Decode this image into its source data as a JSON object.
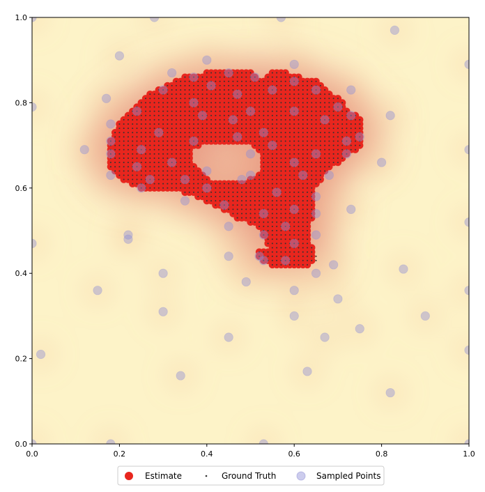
{
  "chart_data": {
    "type": "scatter",
    "title": "",
    "xlabel": "",
    "ylabel": "",
    "xlim": [
      0.0,
      1.0
    ],
    "ylim": [
      0.0,
      1.0
    ],
    "xticks": [
      "0.0",
      "0.2",
      "0.4",
      "0.6",
      "0.8",
      "1.0"
    ],
    "yticks": [
      "0.0",
      "0.2",
      "0.4",
      "0.6",
      "0.8",
      "1.0"
    ],
    "grid": false,
    "legend_position": "bottom-center",
    "background": "heatmap of estimated density (pale yellow low, salmon/pink high)",
    "colors": {
      "estimate": "#e8261e",
      "ground_truth": "#333333",
      "sampled": "#8f8fd6",
      "heat_low": "#fdf3c8",
      "heat_high": "#e07a70"
    },
    "series": [
      {
        "name": "Estimate",
        "marker": "filled-circle",
        "region_rows": [
          {
            "y": 0.87,
            "spans": [
              [
                0.4,
                0.5
              ],
              [
                0.55,
                0.58
              ]
            ]
          },
          {
            "y": 0.86,
            "spans": [
              [
                0.35,
                0.51
              ],
              [
                0.54,
                0.61
              ]
            ]
          },
          {
            "y": 0.85,
            "spans": [
              [
                0.33,
                0.65
              ]
            ]
          },
          {
            "y": 0.84,
            "spans": [
              [
                0.31,
                0.66
              ]
            ]
          },
          {
            "y": 0.83,
            "spans": [
              [
                0.29,
                0.67
              ]
            ]
          },
          {
            "y": 0.82,
            "spans": [
              [
                0.27,
                0.68
              ]
            ]
          },
          {
            "y": 0.81,
            "spans": [
              [
                0.26,
                0.7
              ]
            ]
          },
          {
            "y": 0.8,
            "spans": [
              [
                0.25,
                0.71
              ]
            ]
          },
          {
            "y": 0.79,
            "spans": [
              [
                0.24,
                0.71
              ]
            ]
          },
          {
            "y": 0.78,
            "spans": [
              [
                0.23,
                0.72
              ]
            ]
          },
          {
            "y": 0.77,
            "spans": [
              [
                0.22,
                0.74
              ]
            ]
          },
          {
            "y": 0.76,
            "spans": [
              [
                0.21,
                0.75
              ]
            ]
          },
          {
            "y": 0.75,
            "spans": [
              [
                0.2,
                0.75
              ]
            ]
          },
          {
            "y": 0.74,
            "spans": [
              [
                0.2,
                0.75
              ]
            ]
          },
          {
            "y": 0.73,
            "spans": [
              [
                0.19,
                0.75
              ]
            ]
          },
          {
            "y": 0.72,
            "spans": [
              [
                0.19,
                0.75
              ]
            ]
          },
          {
            "y": 0.71,
            "spans": [
              [
                0.18,
                0.75
              ]
            ]
          },
          {
            "y": 0.7,
            "spans": [
              [
                0.18,
                0.38
              ],
              [
                0.51,
                0.75
              ]
            ]
          },
          {
            "y": 0.69,
            "spans": [
              [
                0.18,
                0.36
              ],
              [
                0.52,
                0.74
              ]
            ]
          },
          {
            "y": 0.68,
            "spans": [
              [
                0.18,
                0.36
              ],
              [
                0.53,
                0.72
              ]
            ]
          },
          {
            "y": 0.67,
            "spans": [
              [
                0.18,
                0.36
              ],
              [
                0.53,
                0.71
              ]
            ]
          },
          {
            "y": 0.66,
            "spans": [
              [
                0.18,
                0.36
              ],
              [
                0.53,
                0.7
              ]
            ]
          },
          {
            "y": 0.65,
            "spans": [
              [
                0.18,
                0.37
              ],
              [
                0.53,
                0.68
              ]
            ]
          },
          {
            "y": 0.64,
            "spans": [
              [
                0.19,
                0.38
              ],
              [
                0.53,
                0.67
              ]
            ]
          },
          {
            "y": 0.63,
            "spans": [
              [
                0.2,
                0.39
              ],
              [
                0.52,
                0.66
              ]
            ]
          },
          {
            "y": 0.62,
            "spans": [
              [
                0.21,
                0.4
              ],
              [
                0.5,
                0.66
              ]
            ]
          },
          {
            "y": 0.61,
            "spans": [
              [
                0.23,
                0.65
              ]
            ]
          },
          {
            "y": 0.6,
            "spans": [
              [
                0.25,
                0.64
              ]
            ]
          },
          {
            "y": 0.59,
            "spans": [
              [
                0.35,
                0.64
              ]
            ]
          },
          {
            "y": 0.58,
            "spans": [
              [
                0.38,
                0.64
              ]
            ]
          },
          {
            "y": 0.57,
            "spans": [
              [
                0.4,
                0.64
              ]
            ]
          },
          {
            "y": 0.56,
            "spans": [
              [
                0.42,
                0.64
              ]
            ]
          },
          {
            "y": 0.55,
            "spans": [
              [
                0.44,
                0.64
              ]
            ]
          },
          {
            "y": 0.54,
            "spans": [
              [
                0.46,
                0.64
              ]
            ]
          },
          {
            "y": 0.53,
            "spans": [
              [
                0.47,
                0.64
              ]
            ]
          },
          {
            "y": 0.52,
            "spans": [
              [
                0.5,
                0.63
              ]
            ]
          },
          {
            "y": 0.51,
            "spans": [
              [
                0.52,
                0.63
              ]
            ]
          },
          {
            "y": 0.5,
            "spans": [
              [
                0.53,
                0.63
              ]
            ]
          },
          {
            "y": 0.49,
            "spans": [
              [
                0.53,
                0.63
              ]
            ]
          },
          {
            "y": 0.48,
            "spans": [
              [
                0.54,
                0.63
              ]
            ]
          },
          {
            "y": 0.47,
            "spans": [
              [
                0.54,
                0.63
              ]
            ]
          },
          {
            "y": 0.46,
            "spans": [
              [
                0.55,
                0.64
              ]
            ]
          },
          {
            "y": 0.45,
            "spans": [
              [
                0.52,
                0.64
              ]
            ]
          },
          {
            "y": 0.44,
            "spans": [
              [
                0.52,
                0.64
              ]
            ]
          },
          {
            "y": 0.43,
            "spans": [
              [
                0.53,
                0.64
              ]
            ]
          },
          {
            "y": 0.42,
            "spans": [
              [
                0.55,
                0.63
              ]
            ]
          }
        ]
      },
      {
        "name": "Ground Truth",
        "marker": "small-dot",
        "same_region_as": "Estimate",
        "extra_points": [
          [
            0.47,
            0.53
          ],
          [
            0.65,
            0.44
          ],
          [
            0.65,
            0.43
          ]
        ]
      },
      {
        "name": "Sampled Points",
        "marker": "translucent-circle",
        "points": [
          [
            0.0,
            1.0
          ],
          [
            0.28,
            1.0
          ],
          [
            0.57,
            1.0
          ],
          [
            0.83,
            0.97
          ],
          [
            1.0,
            0.89
          ],
          [
            0.2,
            0.91
          ],
          [
            0.4,
            0.9
          ],
          [
            0.6,
            0.89
          ],
          [
            0.32,
            0.87
          ],
          [
            0.45,
            0.87
          ],
          [
            0.51,
            0.86
          ],
          [
            0.37,
            0.86
          ],
          [
            0.6,
            0.85
          ],
          [
            0.3,
            0.83
          ],
          [
            0.55,
            0.83
          ],
          [
            0.65,
            0.83
          ],
          [
            0.73,
            0.83
          ],
          [
            0.17,
            0.81
          ],
          [
            0.41,
            0.84
          ],
          [
            0.47,
            0.82
          ],
          [
            0.0,
            0.79
          ],
          [
            0.24,
            0.78
          ],
          [
            0.37,
            0.8
          ],
          [
            0.5,
            0.78
          ],
          [
            0.6,
            0.78
          ],
          [
            0.7,
            0.79
          ],
          [
            0.82,
            0.77
          ],
          [
            0.39,
            0.77
          ],
          [
            0.46,
            0.76
          ],
          [
            0.67,
            0.76
          ],
          [
            0.73,
            0.77
          ],
          [
            0.18,
            0.75
          ],
          [
            0.29,
            0.73
          ],
          [
            0.53,
            0.73
          ],
          [
            0.75,
            0.72
          ],
          [
            0.18,
            0.71
          ],
          [
            0.37,
            0.71
          ],
          [
            0.47,
            0.72
          ],
          [
            0.55,
            0.7
          ],
          [
            0.72,
            0.71
          ],
          [
            0.12,
            0.69
          ],
          [
            0.25,
            0.69
          ],
          [
            0.5,
            0.68
          ],
          [
            0.65,
            0.68
          ],
          [
            0.72,
            0.68
          ],
          [
            1.0,
            0.69
          ],
          [
            0.18,
            0.68
          ],
          [
            0.32,
            0.66
          ],
          [
            0.6,
            0.66
          ],
          [
            0.8,
            0.66
          ],
          [
            0.24,
            0.65
          ],
          [
            0.4,
            0.64
          ],
          [
            0.5,
            0.63
          ],
          [
            0.62,
            0.63
          ],
          [
            0.68,
            0.63
          ],
          [
            0.18,
            0.63
          ],
          [
            0.27,
            0.62
          ],
          [
            0.35,
            0.62
          ],
          [
            0.48,
            0.62
          ],
          [
            0.25,
            0.6
          ],
          [
            0.4,
            0.6
          ],
          [
            0.56,
            0.59
          ],
          [
            0.65,
            0.58
          ],
          [
            0.35,
            0.57
          ],
          [
            0.44,
            0.56
          ],
          [
            0.6,
            0.55
          ],
          [
            0.73,
            0.55
          ],
          [
            0.53,
            0.54
          ],
          [
            0.65,
            0.54
          ],
          [
            1.0,
            0.52
          ],
          [
            0.45,
            0.51
          ],
          [
            0.58,
            0.51
          ],
          [
            0.53,
            0.49
          ],
          [
            0.65,
            0.49
          ],
          [
            0.22,
            0.49
          ],
          [
            0.22,
            0.48
          ],
          [
            0.6,
            0.47
          ],
          [
            0.0,
            0.47
          ],
          [
            0.45,
            0.44
          ],
          [
            0.52,
            0.44
          ],
          [
            0.53,
            0.43
          ],
          [
            0.58,
            0.43
          ],
          [
            0.69,
            0.42
          ],
          [
            0.85,
            0.41
          ],
          [
            0.3,
            0.4
          ],
          [
            0.65,
            0.4
          ],
          [
            0.49,
            0.38
          ],
          [
            0.15,
            0.36
          ],
          [
            0.6,
            0.36
          ],
          [
            1.0,
            0.36
          ],
          [
            0.7,
            0.34
          ],
          [
            0.3,
            0.31
          ],
          [
            0.6,
            0.3
          ],
          [
            0.9,
            0.3
          ],
          [
            0.75,
            0.27
          ],
          [
            0.45,
            0.25
          ],
          [
            0.67,
            0.25
          ],
          [
            0.02,
            0.21
          ],
          [
            1.0,
            0.22
          ],
          [
            0.63,
            0.17
          ],
          [
            0.34,
            0.16
          ],
          [
            0.82,
            0.12
          ],
          [
            0.0,
            0.0
          ],
          [
            0.18,
            0.0
          ],
          [
            0.53,
            0.0
          ],
          [
            1.0,
            0.0
          ]
        ]
      }
    ],
    "legend": [
      "Estimate",
      "Ground Truth",
      "Sampled Points"
    ]
  }
}
